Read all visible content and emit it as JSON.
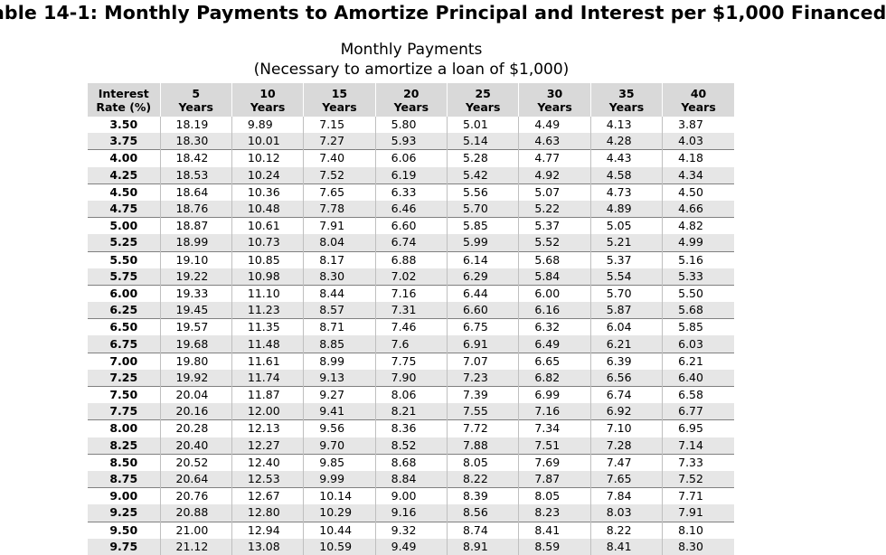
{
  "title": "able 14-1: Monthly Payments to Amortize Principal and Interest per $1,000 Financed",
  "subtitle_line1": "Monthly Payments",
  "subtitle_line2": "(Necessary to amortize a loan of $1,000)",
  "columns": [
    {
      "top": "Interest",
      "bottom": "Rate (%)"
    },
    {
      "top": "5",
      "bottom": "Years"
    },
    {
      "top": "10",
      "bottom": "Years"
    },
    {
      "top": "15",
      "bottom": "Years"
    },
    {
      "top": "20",
      "bottom": "Years"
    },
    {
      "top": "25",
      "bottom": "Years"
    },
    {
      "top": "30",
      "bottom": "Years"
    },
    {
      "top": "35",
      "bottom": "Years"
    },
    {
      "top": "40",
      "bottom": "Years"
    }
  ],
  "rows": [
    [
      "3.50",
      "18.19",
      "9.89",
      "7.15",
      "5.80",
      "5.01",
      "4.49",
      "4.13",
      "3.87"
    ],
    [
      "3.75",
      "18.30",
      "10.01",
      "7.27",
      "5.93",
      "5.14",
      "4.63",
      "4.28",
      "4.03"
    ],
    [
      "4.00",
      "18.42",
      "10.12",
      "7.40",
      "6.06",
      "5.28",
      "4.77",
      "4.43",
      "4.18"
    ],
    [
      "4.25",
      "18.53",
      "10.24",
      "7.52",
      "6.19",
      "5.42",
      "4.92",
      "4.58",
      "4.34"
    ],
    [
      "4.50",
      "18.64",
      "10.36",
      "7.65",
      "6.33",
      "5.56",
      "5.07",
      "4.73",
      "4.50"
    ],
    [
      "4.75",
      "18.76",
      "10.48",
      "7.78",
      "6.46",
      "5.70",
      "5.22",
      "4.89",
      "4.66"
    ],
    [
      "5.00",
      "18.87",
      "10.61",
      "7.91",
      "6.60",
      "5.85",
      "5.37",
      "5.05",
      "4.82"
    ],
    [
      "5.25",
      "18.99",
      "10.73",
      "8.04",
      "6.74",
      "5.99",
      "5.52",
      "5.21",
      "4.99"
    ],
    [
      "5.50",
      "19.10",
      "10.85",
      "8.17",
      "6.88",
      "6.14",
      "5.68",
      "5.37",
      "5.16"
    ],
    [
      "5.75",
      "19.22",
      "10.98",
      "8.30",
      "7.02",
      "6.29",
      "5.84",
      "5.54",
      "5.33"
    ],
    [
      "6.00",
      "19.33",
      "11.10",
      "8.44",
      "7.16",
      "6.44",
      "6.00",
      "5.70",
      "5.50"
    ],
    [
      "6.25",
      "19.45",
      "11.23",
      "8.57",
      "7.31",
      "6.60",
      "6.16",
      "5.87",
      "5.68"
    ],
    [
      "6.50",
      "19.57",
      "11.35",
      "8.71",
      "7.46",
      "6.75",
      "6.32",
      "6.04",
      "5.85"
    ],
    [
      "6.75",
      "19.68",
      "11.48",
      "8.85",
      "7.6",
      "6.91",
      "6.49",
      "6.21",
      "6.03"
    ],
    [
      "7.00",
      "19.80",
      "11.61",
      "8.99",
      "7.75",
      "7.07",
      "6.65",
      "6.39",
      "6.21"
    ],
    [
      "7.25",
      "19.92",
      "11.74",
      "9.13",
      "7.90",
      "7.23",
      "6.82",
      "6.56",
      "6.40"
    ],
    [
      "7.50",
      "20.04",
      "11.87",
      "9.27",
      "8.06",
      "7.39",
      "6.99",
      "6.74",
      "6.58"
    ],
    [
      "7.75",
      "20.16",
      "12.00",
      "9.41",
      "8.21",
      "7.55",
      "7.16",
      "6.92",
      "6.77"
    ],
    [
      "8.00",
      "20.28",
      "12.13",
      "9.56",
      "8.36",
      "7.72",
      "7.34",
      "7.10",
      "6.95"
    ],
    [
      "8.25",
      "20.40",
      "12.27",
      "9.70",
      "8.52",
      "7.88",
      "7.51",
      "7.28",
      "7.14"
    ],
    [
      "8.50",
      "20.52",
      "12.40",
      "9.85",
      "8.68",
      "8.05",
      "7.69",
      "7.47",
      "7.33"
    ],
    [
      "8.75",
      "20.64",
      "12.53",
      "9.99",
      "8.84",
      "8.22",
      "7.87",
      "7.65",
      "7.52"
    ],
    [
      "9.00",
      "20.76",
      "12.67",
      "10.14",
      "9.00",
      "8.39",
      "8.05",
      "7.84",
      "7.71"
    ],
    [
      "9.25",
      "20.88",
      "12.80",
      "10.29",
      "9.16",
      "8.56",
      "8.23",
      "8.03",
      "7.91"
    ],
    [
      "9.50",
      "21.00",
      "12.94",
      "10.44",
      "9.32",
      "8.74",
      "8.41",
      "8.22",
      "8.10"
    ],
    [
      "9.75",
      "21.12",
      "13.08",
      "10.59",
      "9.49",
      "8.91",
      "8.59",
      "8.41",
      "8.30"
    ]
  ],
  "colors": {
    "header_bg": "#d9d9d9",
    "stripe_bg": "#e6e6e6"
  }
}
